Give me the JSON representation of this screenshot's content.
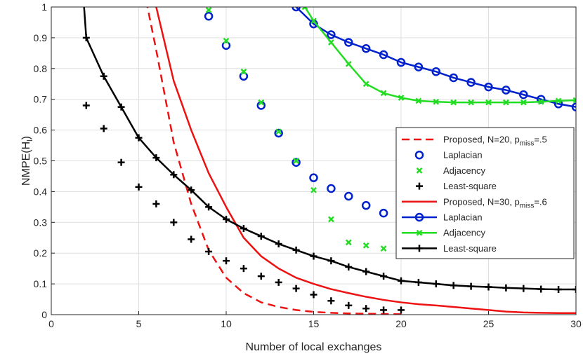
{
  "chart_data": {
    "type": "line",
    "xlabel": "Number of local exchanges",
    "ylabel": {
      "main": "NMPE(H",
      "sub": "l",
      "close": ")"
    },
    "xlim": [
      0,
      30
    ],
    "ylim": [
      0,
      1
    ],
    "xticks": [
      "0",
      "5",
      "10",
      "15",
      "20",
      "25",
      "30"
    ],
    "yticks": [
      "0",
      "0.1",
      "0.2",
      "0.3",
      "0.4",
      "0.5",
      "0.6",
      "0.7",
      "0.8",
      "0.9",
      "1"
    ],
    "grid": true,
    "legend_position": "right",
    "series": [
      {
        "name": {
          "main": "Proposed, N=20, p",
          "sub": "miss",
          "tail": "=.5"
        },
        "style": "dashed",
        "color": "#ee1111",
        "points": [
          [
            5.0,
            1.1
          ],
          [
            5.5,
            1.0
          ],
          [
            6,
            0.86
          ],
          [
            7,
            0.56
          ],
          [
            8,
            0.36
          ],
          [
            9,
            0.21
          ],
          [
            10,
            0.12
          ],
          [
            11,
            0.07
          ],
          [
            12,
            0.04
          ],
          [
            13,
            0.025
          ],
          [
            14,
            0.015
          ],
          [
            15,
            0.009
          ],
          [
            16,
            0.006
          ],
          [
            17,
            0.004
          ],
          [
            18,
            0.003
          ],
          [
            19,
            0.002
          ],
          [
            20,
            0.0015
          ]
        ]
      },
      {
        "name": "Laplacian",
        "style": "circle-markers",
        "color": "#0022cc",
        "points": [
          [
            9,
            0.97
          ],
          [
            10,
            0.875
          ],
          [
            11,
            0.775
          ],
          [
            12,
            0.68
          ],
          [
            13,
            0.59
          ],
          [
            14,
            0.495
          ],
          [
            15,
            0.445
          ],
          [
            16,
            0.41
          ],
          [
            17,
            0.385
          ],
          [
            18,
            0.355
          ],
          [
            19,
            0.33
          ],
          [
            20,
            0.315
          ]
        ]
      },
      {
        "name": "Adjacency",
        "style": "x-markers",
        "color": "#22dd22",
        "points": [
          [
            9,
            0.99
          ],
          [
            10,
            0.89
          ],
          [
            11,
            0.79
          ],
          [
            12,
            0.69
          ],
          [
            13,
            0.595
          ],
          [
            14,
            0.5
          ],
          [
            15,
            0.405
          ],
          [
            16,
            0.31
          ],
          [
            17,
            0.235
          ],
          [
            18,
            0.225
          ],
          [
            19,
            0.215
          ],
          [
            20,
            0.215
          ]
        ]
      },
      {
        "name": "Least-square",
        "style": "plus-markers",
        "color": "#000000",
        "points": [
          [
            2,
            0.68
          ],
          [
            3,
            0.605
          ],
          [
            4,
            0.495
          ],
          [
            5,
            0.415
          ],
          [
            6,
            0.36
          ],
          [
            7,
            0.3
          ],
          [
            8,
            0.245
          ],
          [
            9,
            0.205
          ],
          [
            10,
            0.175
          ],
          [
            11,
            0.15
          ],
          [
            12,
            0.125
          ],
          [
            13,
            0.105
          ],
          [
            14,
            0.085
          ],
          [
            15,
            0.065
          ],
          [
            16,
            0.045
          ],
          [
            17,
            0.03
          ],
          [
            18,
            0.02
          ],
          [
            19,
            0.015
          ],
          [
            20,
            0.015
          ]
        ]
      },
      {
        "name": {
          "main": "Proposed, N=30, p",
          "sub": "miss",
          "tail": "=.6"
        },
        "style": "solid",
        "color": "#ee1111",
        "points": [
          [
            5.8,
            1.1
          ],
          [
            6,
            1.0
          ],
          [
            7,
            0.76
          ],
          [
            8,
            0.6
          ],
          [
            9,
            0.46
          ],
          [
            10,
            0.35
          ],
          [
            11,
            0.25
          ],
          [
            12,
            0.19
          ],
          [
            13,
            0.15
          ],
          [
            14,
            0.12
          ],
          [
            15,
            0.1
          ],
          [
            16,
            0.083
          ],
          [
            17,
            0.07
          ],
          [
            18,
            0.058
          ],
          [
            19,
            0.048
          ],
          [
            20,
            0.04
          ],
          [
            21,
            0.034
          ],
          [
            22,
            0.03
          ],
          [
            23,
            0.025
          ],
          [
            24,
            0.02
          ],
          [
            25,
            0.015
          ],
          [
            26,
            0.01
          ],
          [
            27,
            0.007
          ],
          [
            28,
            0.006
          ],
          [
            29,
            0.005
          ],
          [
            30,
            0.005
          ]
        ]
      },
      {
        "name": "Laplacian",
        "style": "solid-circle",
        "color": "#0022cc",
        "points": [
          [
            14,
            1.0
          ],
          [
            15,
            0.945
          ],
          [
            16,
            0.91
          ],
          [
            17,
            0.885
          ],
          [
            18,
            0.865
          ],
          [
            19,
            0.845
          ],
          [
            20,
            0.82
          ],
          [
            21,
            0.805
          ],
          [
            22,
            0.79
          ],
          [
            23,
            0.77
          ],
          [
            24,
            0.755
          ],
          [
            25,
            0.74
          ],
          [
            26,
            0.73
          ],
          [
            27,
            0.715
          ],
          [
            28,
            0.7
          ],
          [
            29,
            0.685
          ],
          [
            30,
            0.675
          ]
        ],
        "line_start": [
          13.7,
          1.02
        ]
      },
      {
        "name": "Adjacency",
        "style": "solid-x",
        "color": "#22dd22",
        "points": [
          [
            14.5,
            1.0
          ],
          [
            15,
            0.955
          ],
          [
            16,
            0.885
          ],
          [
            17,
            0.815
          ],
          [
            18,
            0.75
          ],
          [
            19,
            0.72
          ],
          [
            20,
            0.705
          ],
          [
            21,
            0.695
          ],
          [
            22,
            0.692
          ],
          [
            23,
            0.69
          ],
          [
            24,
            0.69
          ],
          [
            25,
            0.69
          ],
          [
            26,
            0.69
          ],
          [
            27,
            0.69
          ],
          [
            28,
            0.692
          ],
          [
            29,
            0.695
          ],
          [
            30,
            0.697
          ]
        ],
        "line_start": [
          14.0,
          1.04
        ]
      },
      {
        "name": "Least-square",
        "style": "solid-plus",
        "color": "#000000",
        "points": [
          [
            2,
            0.9
          ],
          [
            3,
            0.775
          ],
          [
            4,
            0.675
          ],
          [
            5,
            0.575
          ],
          [
            6,
            0.51
          ],
          [
            7,
            0.455
          ],
          [
            8,
            0.405
          ],
          [
            9,
            0.35
          ],
          [
            10,
            0.31
          ],
          [
            11,
            0.28
          ],
          [
            12,
            0.255
          ],
          [
            13,
            0.23
          ],
          [
            14,
            0.21
          ],
          [
            15,
            0.19
          ],
          [
            16,
            0.175
          ],
          [
            17,
            0.155
          ],
          [
            18,
            0.14
          ],
          [
            19,
            0.125
          ],
          [
            20,
            0.11
          ],
          [
            21,
            0.105
          ],
          [
            22,
            0.1
          ],
          [
            23,
            0.095
          ],
          [
            24,
            0.092
          ],
          [
            25,
            0.09
          ],
          [
            26,
            0.087
          ],
          [
            27,
            0.085
          ],
          [
            28,
            0.083
          ],
          [
            29,
            0.082
          ],
          [
            30,
            0.082
          ]
        ],
        "line_start": [
          1.8,
          1.06
        ]
      }
    ]
  }
}
